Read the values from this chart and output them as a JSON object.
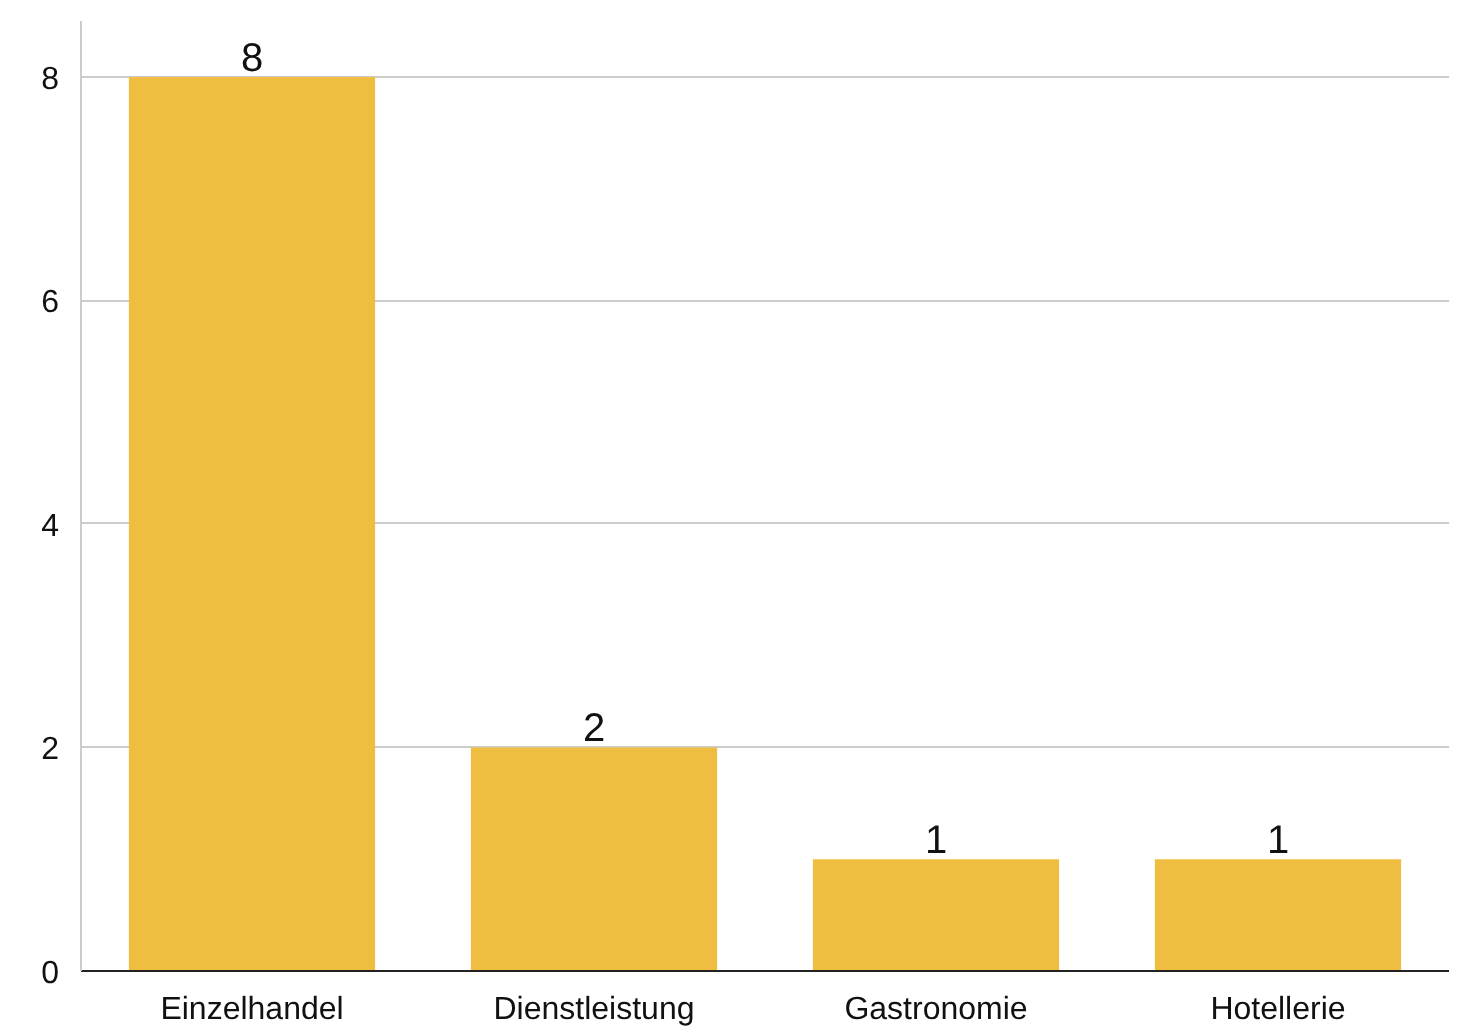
{
  "chart_data": {
    "type": "bar",
    "categories": [
      "Einzelhandel",
      "Dienstleistung",
      "Gastronomie",
      "Hotellerie"
    ],
    "values": [
      8,
      2,
      1,
      1
    ],
    "color": "#efbe41",
    "ylim": [
      0,
      8.5
    ],
    "yticks": [
      0,
      2,
      4,
      6,
      8
    ],
    "grid": "y",
    "data_labels": true
  }
}
